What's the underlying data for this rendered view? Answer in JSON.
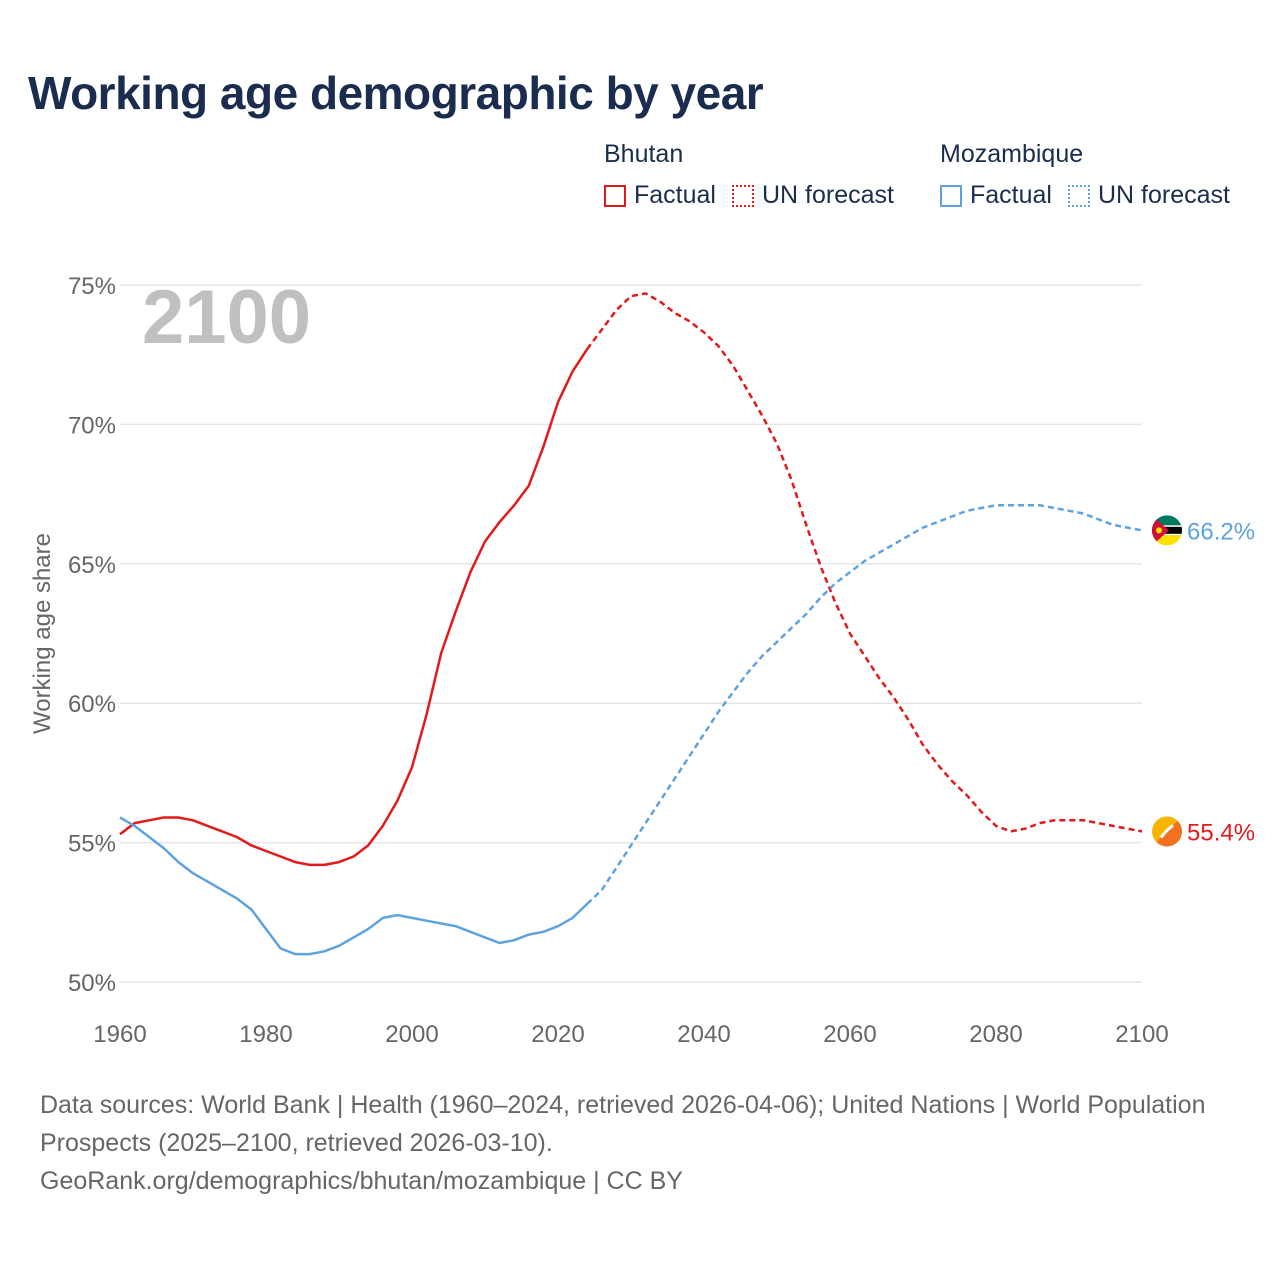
{
  "title": "Working age demographic by year",
  "legend": {
    "groups": [
      {
        "name": "Bhutan",
        "color": "#e31a1c",
        "factual_label": "Factual",
        "forecast_label": "UN forecast"
      },
      {
        "name": "Mozambique",
        "color": "#5fa2e0",
        "factual_label": "Factual",
        "forecast_label": "UN forecast"
      }
    ]
  },
  "footer": {
    "line1": "Data sources: World Bank | Health (1960–2024, retrieved 2026-04-06); United Nations | World Population Prospects (2025–2100, retrieved 2026-03-10).",
    "line2": "GeoRank.org/demographics/bhutan/mozambique | CC BY"
  },
  "chart_data": {
    "type": "line",
    "title": "Working age demographic by year",
    "ylabel": "Working age share",
    "xlabel": "",
    "year_label": "2100",
    "xlim": [
      1960,
      2100
    ],
    "ylim": [
      50,
      75
    ],
    "x_ticks": [
      "1960",
      "1980",
      "2000",
      "2020",
      "2040",
      "2060",
      "2080",
      "2100"
    ],
    "y_ticks": [
      "50%",
      "55%",
      "60%",
      "65%",
      "70%",
      "75%"
    ],
    "grid": true,
    "forecast_start": 2024,
    "series": [
      {
        "name": "Bhutan",
        "color": "#e31a1c",
        "end_label": "55.4%",
        "flag": "bhutan-flag-icon",
        "points": [
          [
            1960,
            55.3
          ],
          [
            1962,
            55.7
          ],
          [
            1964,
            55.8
          ],
          [
            1966,
            55.9
          ],
          [
            1968,
            55.9
          ],
          [
            1970,
            55.8
          ],
          [
            1972,
            55.6
          ],
          [
            1974,
            55.4
          ],
          [
            1976,
            55.2
          ],
          [
            1978,
            54.9
          ],
          [
            1980,
            54.7
          ],
          [
            1982,
            54.5
          ],
          [
            1984,
            54.3
          ],
          [
            1986,
            54.2
          ],
          [
            1988,
            54.2
          ],
          [
            1990,
            54.3
          ],
          [
            1992,
            54.5
          ],
          [
            1994,
            54.9
          ],
          [
            1996,
            55.6
          ],
          [
            1998,
            56.5
          ],
          [
            2000,
            57.7
          ],
          [
            2002,
            59.6
          ],
          [
            2004,
            61.8
          ],
          [
            2006,
            63.3
          ],
          [
            2008,
            64.7
          ],
          [
            2010,
            65.8
          ],
          [
            2012,
            66.5
          ],
          [
            2014,
            67.1
          ],
          [
            2016,
            67.8
          ],
          [
            2018,
            69.2
          ],
          [
            2020,
            70.8
          ],
          [
            2022,
            71.9
          ],
          [
            2024,
            72.7
          ],
          [
            2026,
            73.4
          ],
          [
            2028,
            74.1
          ],
          [
            2030,
            74.6
          ],
          [
            2032,
            74.7
          ],
          [
            2034,
            74.4
          ],
          [
            2036,
            74.0
          ],
          [
            2038,
            73.7
          ],
          [
            2040,
            73.3
          ],
          [
            2042,
            72.8
          ],
          [
            2044,
            72.1
          ],
          [
            2046,
            71.2
          ],
          [
            2048,
            70.3
          ],
          [
            2050,
            69.3
          ],
          [
            2052,
            68.0
          ],
          [
            2054,
            66.4
          ],
          [
            2056,
            64.9
          ],
          [
            2058,
            63.6
          ],
          [
            2060,
            62.5
          ],
          [
            2062,
            61.7
          ],
          [
            2064,
            60.9
          ],
          [
            2066,
            60.2
          ],
          [
            2068,
            59.4
          ],
          [
            2070,
            58.5
          ],
          [
            2072,
            57.8
          ],
          [
            2074,
            57.2
          ],
          [
            2076,
            56.7
          ],
          [
            2078,
            56.1
          ],
          [
            2080,
            55.6
          ],
          [
            2082,
            55.4
          ],
          [
            2084,
            55.5
          ],
          [
            2086,
            55.7
          ],
          [
            2088,
            55.8
          ],
          [
            2090,
            55.8
          ],
          [
            2092,
            55.8
          ],
          [
            2094,
            55.7
          ],
          [
            2096,
            55.6
          ],
          [
            2098,
            55.5
          ],
          [
            2100,
            55.4
          ]
        ]
      },
      {
        "name": "Mozambique",
        "color": "#5fa2e0",
        "end_label": "66.2%",
        "flag": "mozambique-flag-icon",
        "points": [
          [
            1960,
            55.9
          ],
          [
            1962,
            55.6
          ],
          [
            1964,
            55.2
          ],
          [
            1966,
            54.8
          ],
          [
            1968,
            54.3
          ],
          [
            1970,
            53.9
          ],
          [
            1972,
            53.6
          ],
          [
            1974,
            53.3
          ],
          [
            1976,
            53.0
          ],
          [
            1978,
            52.6
          ],
          [
            1980,
            51.9
          ],
          [
            1982,
            51.2
          ],
          [
            1984,
            51.0
          ],
          [
            1986,
            51.0
          ],
          [
            1988,
            51.1
          ],
          [
            1990,
            51.3
          ],
          [
            1992,
            51.6
          ],
          [
            1994,
            51.9
          ],
          [
            1996,
            52.3
          ],
          [
            1998,
            52.4
          ],
          [
            2000,
            52.3
          ],
          [
            2002,
            52.2
          ],
          [
            2004,
            52.1
          ],
          [
            2006,
            52.0
          ],
          [
            2008,
            51.8
          ],
          [
            2010,
            51.6
          ],
          [
            2012,
            51.4
          ],
          [
            2014,
            51.5
          ],
          [
            2016,
            51.7
          ],
          [
            2018,
            51.8
          ],
          [
            2020,
            52.0
          ],
          [
            2022,
            52.3
          ],
          [
            2024,
            52.8
          ],
          [
            2026,
            53.3
          ],
          [
            2028,
            54.1
          ],
          [
            2030,
            54.9
          ],
          [
            2032,
            55.7
          ],
          [
            2034,
            56.5
          ],
          [
            2036,
            57.3
          ],
          [
            2038,
            58.1
          ],
          [
            2040,
            58.9
          ],
          [
            2042,
            59.7
          ],
          [
            2044,
            60.4
          ],
          [
            2046,
            61.1
          ],
          [
            2048,
            61.7
          ],
          [
            2050,
            62.2
          ],
          [
            2052,
            62.7
          ],
          [
            2054,
            63.2
          ],
          [
            2056,
            63.8
          ],
          [
            2058,
            64.3
          ],
          [
            2060,
            64.7
          ],
          [
            2062,
            65.1
          ],
          [
            2064,
            65.4
          ],
          [
            2066,
            65.7
          ],
          [
            2068,
            66.0
          ],
          [
            2070,
            66.3
          ],
          [
            2072,
            66.5
          ],
          [
            2074,
            66.7
          ],
          [
            2076,
            66.9
          ],
          [
            2078,
            67.0
          ],
          [
            2080,
            67.1
          ],
          [
            2082,
            67.1
          ],
          [
            2084,
            67.1
          ],
          [
            2086,
            67.1
          ],
          [
            2088,
            67.0
          ],
          [
            2090,
            66.9
          ],
          [
            2092,
            66.8
          ],
          [
            2094,
            66.6
          ],
          [
            2096,
            66.4
          ],
          [
            2098,
            66.3
          ],
          [
            2100,
            66.2
          ]
        ]
      }
    ]
  }
}
